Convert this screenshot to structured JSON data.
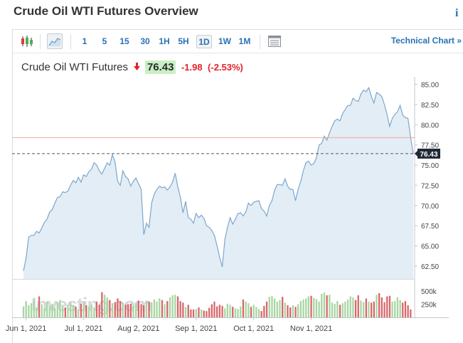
{
  "page": {
    "title": "Crude Oil WTI Futures Overview",
    "info_label": "i"
  },
  "toolbar": {
    "chart_types": [
      {
        "name": "candlestick-icon"
      },
      {
        "name": "area-chart-icon"
      }
    ],
    "timeframes": [
      "1",
      "5",
      "15",
      "30",
      "1H",
      "5H",
      "1D",
      "1W",
      "1M"
    ],
    "active_timeframe": "1D",
    "table_icon": "table-icon",
    "technical_chart_label": "Technical Chart »"
  },
  "quote": {
    "name": "Crude Oil WTI Futures",
    "direction": "down",
    "price": "76.43",
    "change": "-1.98",
    "change_pct": "(-2.53%)"
  },
  "colors": {
    "accent": "#2a72b5",
    "line": "#7ba7cc",
    "area": "#e3edf6",
    "up_volume": "#a8d6a3",
    "down_volume": "#d9676a",
    "down_text": "#e1222a",
    "price_badge": "#c8efc4"
  },
  "watermark": "Investing.com",
  "chart_data": {
    "type": "area",
    "price_axis": {
      "ticks": [
        "85.00",
        "82.50",
        "80.00",
        "77.50",
        "75.00",
        "72.50",
        "70.00",
        "67.50",
        "65.00",
        "62.50"
      ],
      "range": [
        60.9,
        85.5
      ]
    },
    "volume_axis": {
      "ticks": [
        "500k",
        "250k"
      ],
      "range": [
        0,
        650000
      ]
    },
    "x_ticks": [
      "Jun 1, 2021",
      "Jul 1, 2021",
      "Aug 2, 2021",
      "Sep 1, 2021",
      "Oct 1, 2021",
      "Nov 1, 2021"
    ],
    "previous_close": 78.41,
    "last_price": 76.43,
    "last_price_label": "76.43",
    "series": [
      {
        "values": [
          61.9,
          63.5,
          66.1,
          66.3,
          66.3,
          66.8,
          66.6,
          67.2,
          67.9,
          68.3,
          69.2,
          69.5,
          70.3,
          71.0,
          71.1,
          71.7,
          71.6,
          71.8,
          72.5,
          73.1,
          72.8,
          73.5,
          72.9,
          73.8,
          73.6,
          74.2,
          74.5,
          75.3,
          75.0,
          74.3,
          73.9,
          74.6,
          75.3,
          75.0,
          76.3,
          75.4,
          73.0,
          72.5,
          74.3,
          73.6,
          73.3,
          72.4,
          73.0,
          73.4,
          72.7,
          72.0,
          66.4,
          67.8,
          67.3,
          70.3,
          71.4,
          72.0,
          72.4,
          72.2,
          72.3,
          71.9,
          72.3,
          72.9,
          74.0,
          72.3,
          71.0,
          69.1,
          70.5,
          68.5,
          68.3,
          67.8,
          69.0,
          68.5,
          68.8,
          68.4,
          67.5,
          67.3,
          66.9,
          66.3,
          65.0,
          63.6,
          62.4,
          65.8,
          67.3,
          68.5,
          67.7,
          68.3,
          69.0,
          69.1,
          68.7,
          69.2,
          70.3,
          70.0,
          70.4,
          70.5,
          70.6,
          69.6,
          69.3,
          68.7,
          70.0,
          70.6,
          71.9,
          72.6,
          72.6,
          72.5,
          73.3,
          72.4,
          72.0,
          72.0,
          70.6,
          72.0,
          73.0,
          74.3,
          75.3,
          75.5,
          75.0,
          75.2,
          75.9,
          77.5,
          77.7,
          78.6,
          78.1,
          79.0,
          79.8,
          80.5,
          80.7,
          80.5,
          81.4,
          81.9,
          82.4,
          82.4,
          83.3,
          83.0,
          82.9,
          83.8,
          84.3,
          84.1,
          84.6,
          83.5,
          82.7,
          84.0,
          83.8,
          83.5,
          82.5,
          81.3,
          79.8,
          80.8,
          81.3,
          81.6,
          82.4,
          81.2,
          80.9,
          80.8,
          78.5,
          76.4
        ]
      },
      {
        "name": "volume",
        "values": [
          210,
          310,
          230,
          270,
          340,
          190,
          400,
          250,
          170,
          300,
          220,
          260,
          180,
          290,
          330,
          210,
          190,
          240,
          280,
          230,
          200,
          150,
          260,
          300,
          230,
          210,
          250,
          190,
          300,
          240,
          480,
          430,
          380,
          330,
          270,
          290,
          360,
          310,
          280,
          240,
          250,
          260,
          210,
          280,
          320,
          250,
          230,
          320,
          300,
          290,
          340,
          300,
          360,
          330,
          250,
          310,
          380,
          420,
          430,
          400,
          310,
          280,
          200,
          240,
          150,
          150,
          160,
          190,
          150,
          130,
          120,
          180,
          250,
          300,
          210,
          240,
          220,
          170,
          260,
          240,
          200,
          170,
          160,
          210,
          340,
          300,
          270,
          200,
          240,
          200,
          160,
          120,
          220,
          300,
          390,
          410,
          360,
          300,
          330,
          390,
          280,
          230,
          190,
          230,
          200,
          250,
          310,
          340,
          360,
          400,
          410,
          370,
          350,
          300,
          450,
          470,
          420,
          430,
          280,
          260,
          310,
          240,
          270,
          300,
          340,
          400,
          380,
          330,
          420,
          320,
          290,
          360,
          300,
          280,
          300,
          430,
          460,
          380,
          290,
          400,
          410,
          300,
          310,
          380,
          330,
          280,
          310,
          230,
          150
        ]
      }
    ]
  }
}
